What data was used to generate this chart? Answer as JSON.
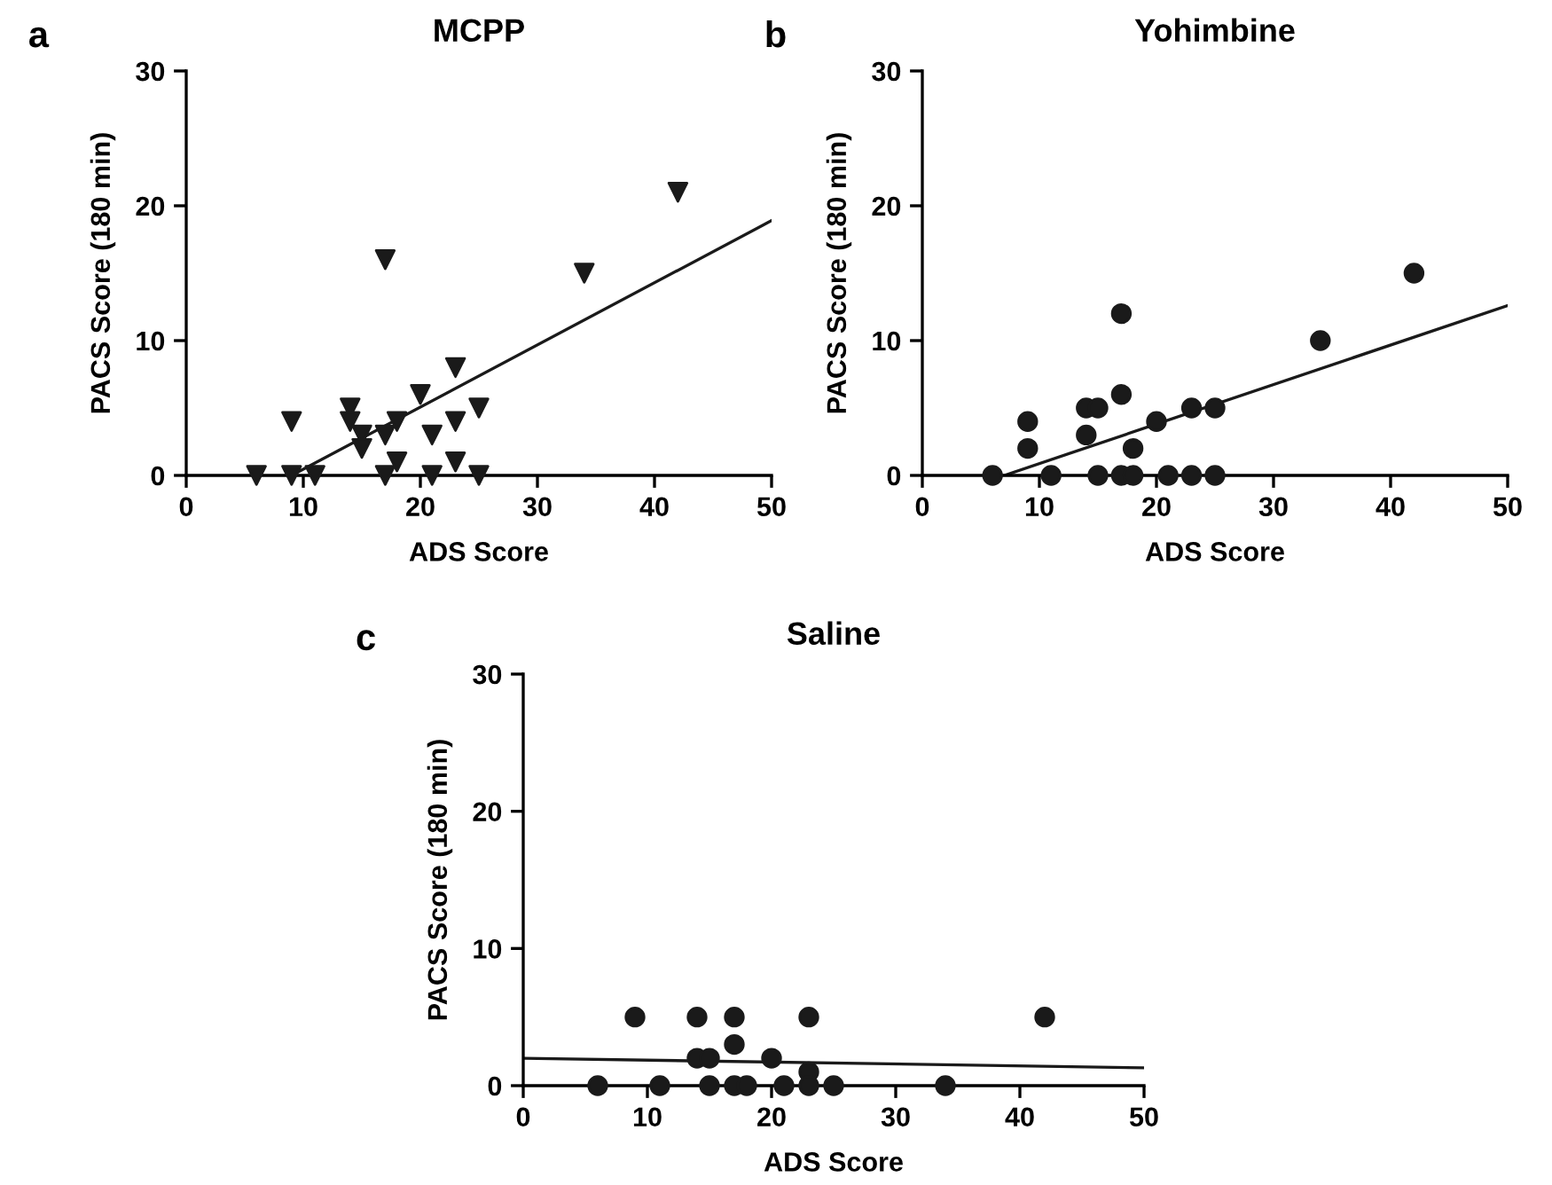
{
  "chart_data": [
    {
      "type": "scatter",
      "title": "MCPP",
      "xlabel": "ADS Score",
      "ylabel": "PACS Score (180 min)",
      "annotations": [
        "a"
      ],
      "xlim": [
        0,
        50
      ],
      "ylim": [
        0,
        30
      ],
      "xticks": [
        0,
        10,
        20,
        30,
        40,
        50
      ],
      "yticks": [
        0,
        10,
        20,
        30
      ],
      "grid": false,
      "legend": false,
      "series": [
        {
          "color": "#1a1a1a",
          "marker": "triangle",
          "x": [
            6,
            9,
            9,
            11,
            14,
            14,
            15,
            15,
            17,
            17,
            17,
            18,
            18,
            20,
            21,
            21,
            23,
            23,
            23,
            25,
            25,
            34,
            42
          ],
          "values": [
            0,
            0,
            4,
            0,
            5,
            4,
            3,
            2,
            16,
            3,
            0,
            4,
            1,
            6,
            3,
            0,
            8,
            4,
            1,
            5,
            0,
            15,
            21
          ]
        },
        {
          "type": "line",
          "color": "#1a1a1a",
          "marker": "none",
          "x": [
            9,
            50
          ],
          "values": [
            0,
            18.9
          ]
        }
      ]
    },
    {
      "type": "scatter",
      "title": "Yohimbine",
      "xlabel": "ADS Score",
      "ylabel": "PACS Score (180 min)",
      "annotations": [
        "b"
      ],
      "xlim": [
        0,
        50
      ],
      "ylim": [
        0,
        30
      ],
      "xticks": [
        0,
        10,
        20,
        30,
        40,
        50
      ],
      "yticks": [
        0,
        10,
        20,
        30
      ],
      "grid": false,
      "legend": false,
      "series": [
        {
          "color": "#1a1a1a",
          "marker": "circle",
          "x": [
            6,
            9,
            9,
            11,
            14,
            15,
            14,
            15,
            17,
            17,
            17,
            18,
            18,
            20,
            21,
            23,
            23,
            25,
            25,
            34,
            42
          ],
          "values": [
            0,
            4,
            2,
            0,
            5,
            5,
            3,
            0,
            12,
            6,
            0,
            2,
            0,
            4,
            0,
            5,
            0,
            5,
            0,
            10,
            15
          ]
        },
        {
          "type": "line",
          "color": "#1a1a1a",
          "marker": "none",
          "x": [
            7,
            50
          ],
          "values": [
            0,
            12.6
          ]
        }
      ]
    },
    {
      "type": "scatter",
      "title": "Saline",
      "xlabel": "ADS Score",
      "ylabel": "PACS Score (180 min)",
      "annotations": [
        "c"
      ],
      "xlim": [
        0,
        50
      ],
      "ylim": [
        0,
        30
      ],
      "xticks": [
        0,
        10,
        20,
        30,
        40,
        50
      ],
      "yticks": [
        0,
        10,
        20,
        30
      ],
      "grid": false,
      "legend": false,
      "series": [
        {
          "color": "#1a1a1a",
          "marker": "circle",
          "x": [
            6,
            9,
            11,
            14,
            14,
            15,
            15,
            17,
            17,
            17,
            18,
            20,
            21,
            23,
            23,
            23,
            25,
            34,
            42
          ],
          "values": [
            0,
            5,
            0,
            5,
            2,
            2,
            0,
            5,
            3,
            0,
            0,
            2,
            0,
            5,
            1,
            0,
            0,
            0,
            5
          ]
        },
        {
          "type": "line",
          "color": "#1a1a1a",
          "marker": "none",
          "x": [
            0,
            50
          ],
          "values": [
            2.0,
            1.3
          ]
        }
      ]
    }
  ]
}
